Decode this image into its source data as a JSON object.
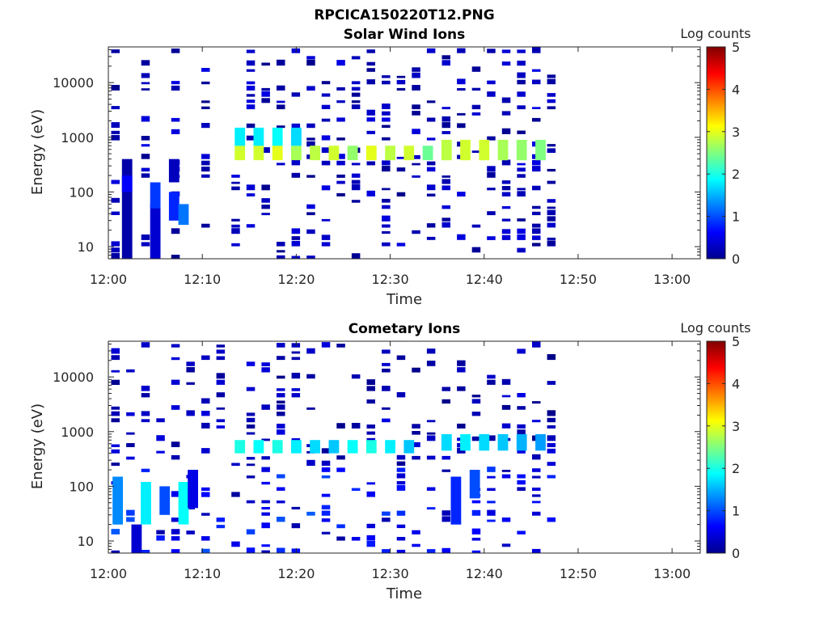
{
  "figure_title": "RPCICA150220T12.PNG",
  "panels": [
    {
      "title": "Solar Wind Ions",
      "xlabel": "Time",
      "ylabel": "Energy (eV)",
      "colorbar_label": "Log counts"
    },
    {
      "title": "Cometary Ions",
      "xlabel": "Time",
      "ylabel": "Energy (eV)",
      "colorbar_label": "Log counts"
    }
  ],
  "x_ticks": [
    "12:00",
    "12:10",
    "12:20",
    "12:30",
    "12:40",
    "12:50",
    "13:00"
  ],
  "y_ticks": [
    "10",
    "100",
    "1000",
    "10000"
  ],
  "colorbar_ticks": [
    "0",
    "1",
    "2",
    "3",
    "4",
    "5"
  ],
  "colormap": "jet",
  "chart_data": [
    {
      "type": "heatmap",
      "title": "Solar Wind Ions",
      "xlabel": "Time",
      "ylabel": "Energy (eV)",
      "colorbar_label": "Log counts",
      "x_axis": {
        "type": "time",
        "range": [
          "12:00",
          "13:03"
        ],
        "ticks": [
          "12:00",
          "12:10",
          "12:20",
          "12:30",
          "12:40",
          "12:50",
          "13:00"
        ]
      },
      "y_axis": {
        "type": "log",
        "range": [
          6,
          45000
        ],
        "ticks": [
          10,
          100,
          1000,
          10000
        ]
      },
      "c_range": [
        0,
        5
      ],
      "data_end_time": "12:47",
      "cells": [
        {
          "time": "12:02",
          "energy_min": 6,
          "energy_max": 400,
          "log_counts": 0.2
        },
        {
          "time": "12:02",
          "energy_min": 100,
          "energy_max": 200,
          "log_counts": 0.6
        },
        {
          "time": "12:05",
          "energy_min": 6,
          "energy_max": 60,
          "log_counts": 0.4
        },
        {
          "time": "12:05",
          "energy_min": 50,
          "energy_max": 150,
          "log_counts": 0.9
        },
        {
          "time": "12:07",
          "energy_min": 30,
          "energy_max": 100,
          "log_counts": 0.8
        },
        {
          "time": "12:07",
          "energy_min": 150,
          "energy_max": 400,
          "log_counts": 0.3
        },
        {
          "time": "12:08",
          "energy_min": 25,
          "energy_max": 60,
          "log_counts": 1.2
        },
        {
          "time": "12:14",
          "energy_min": 380,
          "energy_max": 700,
          "log_counts": 2.9
        },
        {
          "time": "12:14",
          "energy_min": 700,
          "energy_max": 1500,
          "log_counts": 1.8
        },
        {
          "time": "12:16",
          "energy_min": 380,
          "energy_max": 700,
          "log_counts": 2.9
        },
        {
          "time": "12:16",
          "energy_min": 700,
          "energy_max": 1500,
          "log_counts": 1.8
        },
        {
          "time": "12:18",
          "energy_min": 380,
          "energy_max": 700,
          "log_counts": 3.0
        },
        {
          "time": "12:18",
          "energy_min": 700,
          "energy_max": 1500,
          "log_counts": 1.9
        },
        {
          "time": "12:20",
          "energy_min": 380,
          "energy_max": 700,
          "log_counts": 2.7
        },
        {
          "time": "12:20",
          "energy_min": 700,
          "energy_max": 1500,
          "log_counts": 1.7
        },
        {
          "time": "12:22",
          "energy_min": 380,
          "energy_max": 700,
          "log_counts": 2.8
        },
        {
          "time": "12:24",
          "energy_min": 380,
          "energy_max": 700,
          "log_counts": 2.9
        },
        {
          "time": "12:26",
          "energy_min": 380,
          "energy_max": 700,
          "log_counts": 2.6
        },
        {
          "time": "12:28",
          "energy_min": 380,
          "energy_max": 700,
          "log_counts": 3.0
        },
        {
          "time": "12:30",
          "energy_min": 380,
          "energy_max": 700,
          "log_counts": 2.8
        },
        {
          "time": "12:32",
          "energy_min": 380,
          "energy_max": 700,
          "log_counts": 2.9
        },
        {
          "time": "12:34",
          "energy_min": 380,
          "energy_max": 700,
          "log_counts": 2.4
        },
        {
          "time": "12:36",
          "energy_min": 380,
          "energy_max": 900,
          "log_counts": 2.8
        },
        {
          "time": "12:38",
          "energy_min": 380,
          "energy_max": 900,
          "log_counts": 2.9
        },
        {
          "time": "12:40",
          "energy_min": 380,
          "energy_max": 900,
          "log_counts": 2.9
        },
        {
          "time": "12:42",
          "energy_min": 380,
          "energy_max": 900,
          "log_counts": 2.7
        },
        {
          "time": "12:44",
          "energy_min": 380,
          "energy_max": 900,
          "log_counts": 2.6
        },
        {
          "time": "12:46",
          "energy_min": 380,
          "energy_max": 900,
          "log_counts": 2.5
        }
      ]
    },
    {
      "type": "heatmap",
      "title": "Cometary Ions",
      "xlabel": "Time",
      "ylabel": "Energy (eV)",
      "colorbar_label": "Log counts",
      "x_axis": {
        "type": "time",
        "range": [
          "12:00",
          "13:03"
        ],
        "ticks": [
          "12:00",
          "12:10",
          "12:20",
          "12:30",
          "12:40",
          "12:50",
          "13:00"
        ]
      },
      "y_axis": {
        "type": "log",
        "range": [
          6,
          45000
        ],
        "ticks": [
          10,
          100,
          1000,
          10000
        ]
      },
      "c_range": [
        0,
        5
      ],
      "data_end_time": "12:47",
      "cells": [
        {
          "time": "12:01",
          "energy_min": 20,
          "energy_max": 150,
          "log_counts": 1.3
        },
        {
          "time": "12:03",
          "energy_min": 6,
          "energy_max": 20,
          "log_counts": 0.4
        },
        {
          "time": "12:04",
          "energy_min": 20,
          "energy_max": 120,
          "log_counts": 1.8
        },
        {
          "time": "12:06",
          "energy_min": 30,
          "energy_max": 100,
          "log_counts": 1.0
        },
        {
          "time": "12:08",
          "energy_min": 20,
          "energy_max": 120,
          "log_counts": 1.9
        },
        {
          "time": "12:09",
          "energy_min": 40,
          "energy_max": 200,
          "log_counts": 0.5
        },
        {
          "time": "12:14",
          "energy_min": 400,
          "energy_max": 700,
          "log_counts": 2.0
        },
        {
          "time": "12:16",
          "energy_min": 400,
          "energy_max": 700,
          "log_counts": 1.9
        },
        {
          "time": "12:18",
          "energy_min": 400,
          "energy_max": 700,
          "log_counts": 2.0
        },
        {
          "time": "12:20",
          "energy_min": 400,
          "energy_max": 700,
          "log_counts": 1.8
        },
        {
          "time": "12:22",
          "energy_min": 400,
          "energy_max": 700,
          "log_counts": 1.7
        },
        {
          "time": "12:24",
          "energy_min": 400,
          "energy_max": 700,
          "log_counts": 1.6
        },
        {
          "time": "12:26",
          "energy_min": 400,
          "energy_max": 700,
          "log_counts": 1.9
        },
        {
          "time": "12:28",
          "energy_min": 400,
          "energy_max": 700,
          "log_counts": 2.0
        },
        {
          "time": "12:30",
          "energy_min": 400,
          "energy_max": 700,
          "log_counts": 1.8
        },
        {
          "time": "12:32",
          "energy_min": 400,
          "energy_max": 700,
          "log_counts": 1.6
        },
        {
          "time": "12:36",
          "energy_min": 450,
          "energy_max": 900,
          "log_counts": 1.7
        },
        {
          "time": "12:38",
          "energy_min": 450,
          "energy_max": 900,
          "log_counts": 1.8
        },
        {
          "time": "12:40",
          "energy_min": 450,
          "energy_max": 900,
          "log_counts": 1.7
        },
        {
          "time": "12:42",
          "energy_min": 450,
          "energy_max": 900,
          "log_counts": 1.6
        },
        {
          "time": "12:44",
          "energy_min": 450,
          "energy_max": 900,
          "log_counts": 1.5
        },
        {
          "time": "12:46",
          "energy_min": 450,
          "energy_max": 900,
          "log_counts": 1.4
        },
        {
          "time": "12:37",
          "energy_min": 20,
          "energy_max": 150,
          "log_counts": 0.8
        },
        {
          "time": "12:39",
          "energy_min": 60,
          "energy_max": 200,
          "log_counts": 1.0
        }
      ]
    }
  ]
}
